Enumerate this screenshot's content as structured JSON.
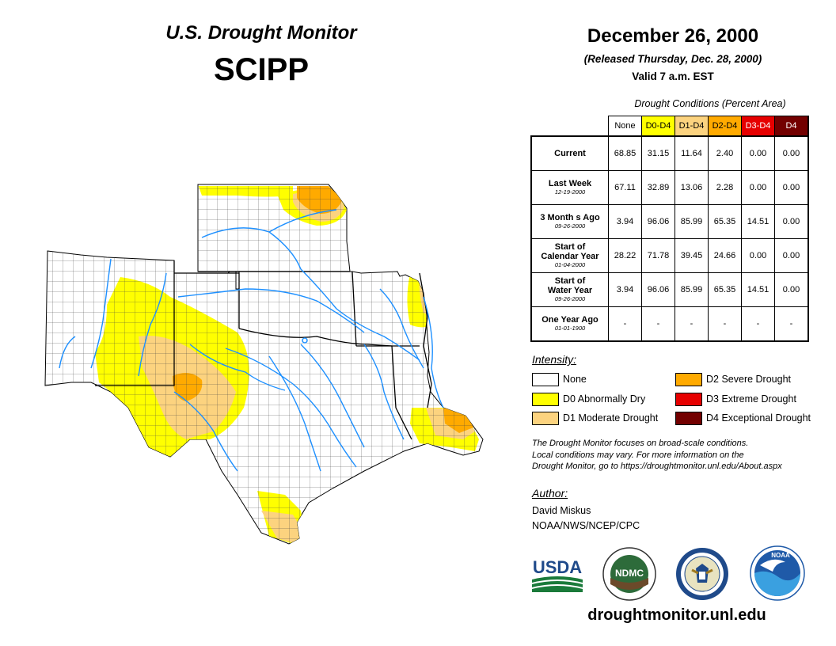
{
  "header": {
    "title": "U.S. Drought Monitor",
    "region": "SCIPP",
    "date": "December 26, 2000",
    "released": "(Released Thursday, Dec. 28, 2000)",
    "valid": "Valid 7 a.m. EST"
  },
  "table": {
    "caption": "Drought Conditions (Percent Area)",
    "columns": [
      "None",
      "D0-D4",
      "D1-D4",
      "D2-D4",
      "D3-D4",
      "D4"
    ],
    "column_colors": [
      "#ffffff",
      "#ffff00",
      "#fcd37f",
      "#ffaa00",
      "#e60000",
      "#730000"
    ],
    "rows": [
      {
        "label": "Current",
        "sub": "",
        "values": [
          "68.85",
          "31.15",
          "11.64",
          "2.40",
          "0.00",
          "0.00"
        ]
      },
      {
        "label": "Last Week",
        "sub": "12-19-2000",
        "values": [
          "67.11",
          "32.89",
          "13.06",
          "2.28",
          "0.00",
          "0.00"
        ]
      },
      {
        "label": "3 Month s Ago",
        "sub": "09-26-2000",
        "values": [
          "3.94",
          "96.06",
          "85.99",
          "65.35",
          "14.51",
          "0.00"
        ]
      },
      {
        "label1": "Start of",
        "label2": "Calendar Year",
        "sub": "01-04-2000",
        "values": [
          "28.22",
          "71.78",
          "39.45",
          "24.66",
          "0.00",
          "0.00"
        ]
      },
      {
        "label1": "Start of",
        "label2": "Water Year",
        "sub": "09-26-2000",
        "values": [
          "3.94",
          "96.06",
          "85.99",
          "65.35",
          "14.51",
          "0.00"
        ]
      },
      {
        "label": "One Year Ago",
        "sub": "01-01-1900",
        "values": [
          "-",
          "-",
          "-",
          "-",
          "-",
          "-"
        ]
      }
    ]
  },
  "legend": {
    "title": "Intensity:",
    "items": [
      {
        "label": "None",
        "color": "#ffffff"
      },
      {
        "label": "D0 Abnormally Dry",
        "color": "#ffff00"
      },
      {
        "label": "D1 Moderate Drought",
        "color": "#fcd37f"
      },
      {
        "label": "D2 Severe Drought",
        "color": "#ffaa00"
      },
      {
        "label": "D3 Extreme Drought",
        "color": "#e60000"
      },
      {
        "label": "D4 Exceptional Drought",
        "color": "#730000"
      }
    ]
  },
  "note": {
    "line1": "The Drought Monitor focuses on broad-scale conditions.",
    "line2": "Local conditions may vary. For more information on the",
    "line3": "Drought Monitor, go to https://droughtmonitor.unl.edu/About.aspx"
  },
  "author": {
    "heading": "Author:",
    "name": "David Miskus",
    "org": "NOAA/NWS/NCEP/CPC"
  },
  "logos": {
    "usda": "USDA",
    "ndmc": "NDMC",
    "noaa": "NOAA"
  },
  "footer": {
    "url": "droughtmonitor.unl.edu"
  }
}
